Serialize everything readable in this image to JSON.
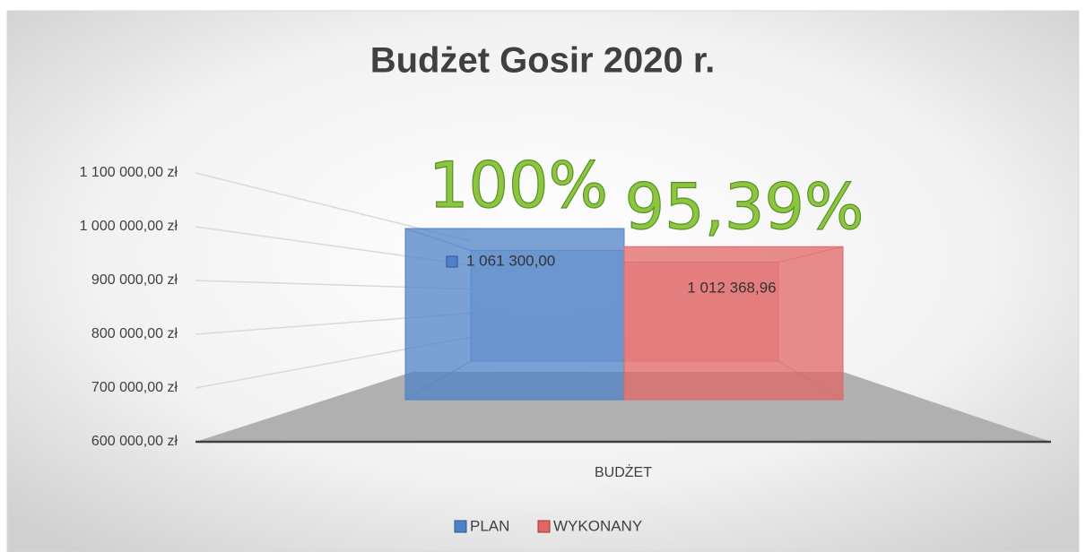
{
  "chart_data": {
    "type": "bar3d",
    "title": "Budżet Gosir 2020 r.",
    "categories": [
      "BUDŻET"
    ],
    "series": [
      {
        "name": "PLAN",
        "color": "#4f81c7",
        "values": [
          1061300
        ],
        "value_labels": [
          "1 061 300,00"
        ]
      },
      {
        "name": "WYKONANY",
        "color": "#e06666",
        "values": [
          1012368.96
        ],
        "value_labels": [
          "1 012 368,96"
        ]
      }
    ],
    "annotations": [
      "100%",
      "95,39%"
    ],
    "ylim": [
      600000,
      1100000
    ],
    "yticks": [
      {
        "value": 600000,
        "label": "600 000,00 zł"
      },
      {
        "value": 700000,
        "label": "700 000,00 zł"
      },
      {
        "value": 800000,
        "label": "800 000,00 zł"
      },
      {
        "value": 900000,
        "label": "900 000,00 zł"
      },
      {
        "value": 1000000,
        "label": "1 000 000,00 zł"
      },
      {
        "value": 1100000,
        "label": "1 100 000,00 zł"
      }
    ],
    "grid": true,
    "legend": "bottom"
  }
}
